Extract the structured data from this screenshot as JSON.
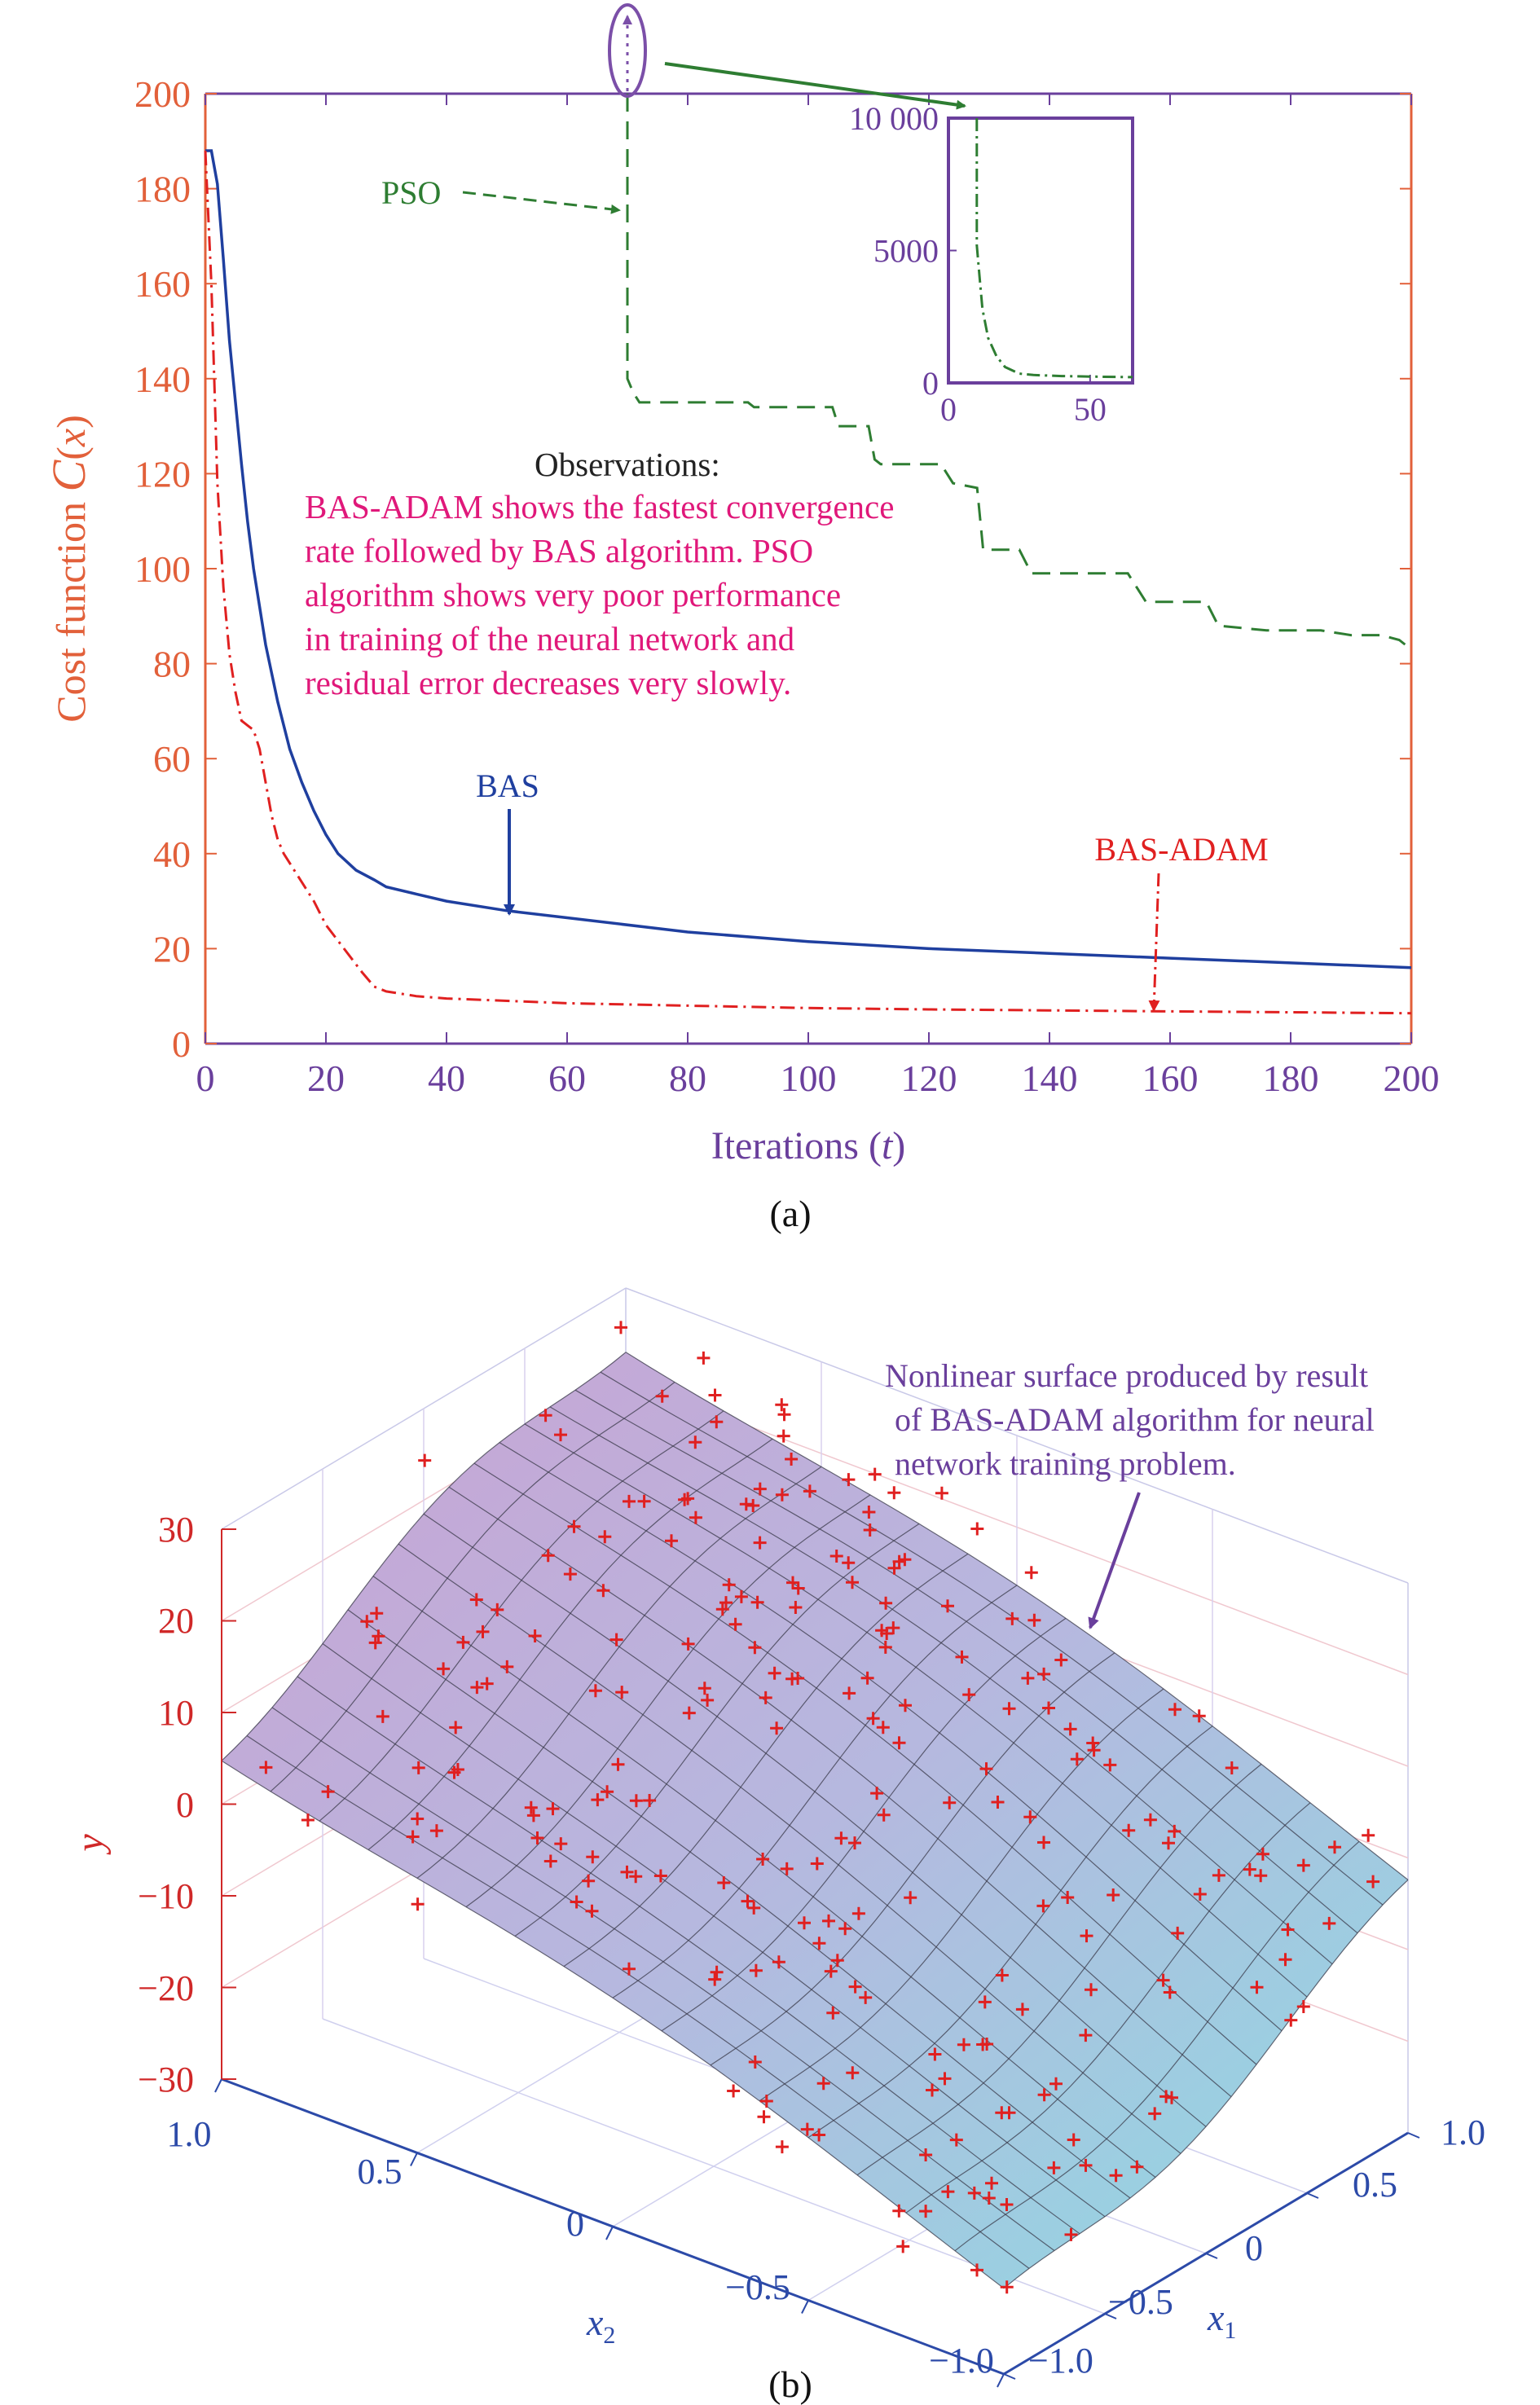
{
  "chart_data": [
    {
      "panel_label": "(a)",
      "type": "line",
      "xlabel": "Iterations (t)",
      "ylabel": "Cost function C(x)",
      "xlim": [
        0,
        200
      ],
      "ylim": [
        0,
        200
      ],
      "x_ticks": [
        0,
        20,
        40,
        60,
        80,
        100,
        120,
        140,
        160,
        180,
        200
      ],
      "y_ticks": [
        0,
        20,
        40,
        60,
        80,
        100,
        120,
        140,
        160,
        180,
        200
      ],
      "grid": false,
      "series": [
        {
          "name": "BAS",
          "color": "#1f3f9f",
          "style": "solid",
          "points": [
            [
              0,
              188
            ],
            [
              1,
              188
            ],
            [
              2,
              181
            ],
            [
              3,
              165
            ],
            [
              4,
              148
            ],
            [
              5,
              135
            ],
            [
              6,
              122
            ],
            [
              7,
              110
            ],
            [
              8,
              100
            ],
            [
              10,
              84
            ],
            [
              12,
              72
            ],
            [
              14,
              62
            ],
            [
              16,
              55
            ],
            [
              18,
              49
            ],
            [
              20,
              44
            ],
            [
              22,
              40
            ],
            [
              25,
              36.5
            ],
            [
              28,
              34.5
            ],
            [
              30,
              33
            ],
            [
              35,
              31.5
            ],
            [
              40,
              30
            ],
            [
              50,
              28
            ],
            [
              60,
              26.5
            ],
            [
              80,
              23.5
            ],
            [
              100,
              21.5
            ],
            [
              120,
              20
            ],
            [
              140,
              19
            ],
            [
              160,
              18
            ],
            [
              180,
              17
            ],
            [
              200,
              16
            ]
          ]
        },
        {
          "name": "BAS-ADAM",
          "color": "#e02020",
          "style": "dashdot",
          "points": [
            [
              0,
              188
            ],
            [
              1,
              160
            ],
            [
              2,
              118
            ],
            [
              3,
              96
            ],
            [
              4,
              82
            ],
            [
              5,
              74
            ],
            [
              6,
              68
            ],
            [
              7,
              67
            ],
            [
              8,
              66
            ],
            [
              9,
              62
            ],
            [
              10,
              55
            ],
            [
              11,
              48
            ],
            [
              12,
              43
            ],
            [
              13,
              40
            ],
            [
              15,
              36
            ],
            [
              18,
              30
            ],
            [
              20,
              25
            ],
            [
              23,
              20
            ],
            [
              26,
              15
            ],
            [
              28,
              12
            ],
            [
              30,
              11
            ],
            [
              35,
              10
            ],
            [
              40,
              9.5
            ],
            [
              60,
              8.5
            ],
            [
              80,
              8
            ],
            [
              100,
              7.5
            ],
            [
              120,
              7.2
            ],
            [
              140,
              7
            ],
            [
              160,
              6.8
            ],
            [
              180,
              6.6
            ],
            [
              200,
              6.4
            ]
          ]
        },
        {
          "name": "PSO",
          "color": "#2e7d32",
          "style": "dashed",
          "points": [
            [
              70,
              200
            ],
            [
              70,
              140
            ],
            [
              71,
              137
            ],
            [
              72,
              135
            ],
            [
              90,
              135
            ],
            [
              91,
              134
            ],
            [
              104,
              134
            ],
            [
              105,
              130
            ],
            [
              110,
              130
            ],
            [
              111,
              123
            ],
            [
              112,
              122
            ],
            [
              122,
              122
            ],
            [
              124,
              118
            ],
            [
              128,
              117
            ],
            [
              129,
              104
            ],
            [
              135,
              104
            ],
            [
              137,
              99
            ],
            [
              146,
              99
            ],
            [
              147,
              99
            ],
            [
              153,
              99
            ],
            [
              156,
              93
            ],
            [
              166,
              93
            ],
            [
              168,
              88
            ],
            [
              176,
              87
            ],
            [
              185,
              87
            ],
            [
              190,
              86
            ],
            [
              195,
              86
            ],
            [
              198,
              85
            ],
            [
              200,
              83
            ]
          ]
        }
      ],
      "inset": {
        "xlim": [
          0,
          65
        ],
        "ylim": [
          0,
          10000
        ],
        "x_ticks": [
          0,
          50
        ],
        "y_ticks": [
          "0",
          "5000",
          "10 000"
        ],
        "points": [
          [
            10,
            10000
          ],
          [
            10,
            5200
          ],
          [
            11,
            4000
          ],
          [
            12,
            2800
          ],
          [
            14,
            1700
          ],
          [
            17,
            1000
          ],
          [
            20,
            600
          ],
          [
            25,
            350
          ],
          [
            30,
            300
          ],
          [
            40,
            260
          ],
          [
            55,
            230
          ],
          [
            65,
            220
          ]
        ]
      },
      "annotations": {
        "pso_label": "PSO",
        "bas_label": "BAS",
        "bas_adam_label": "BAS-ADAM",
        "observations_title": "Observations:",
        "observations_lines": [
          "BAS-ADAM shows the fastest convergence",
          "rate followed by BAS algorithm. PSO",
          "algorithm shows very poor performance",
          "in training of the neural network and",
          "residual error decreases very slowly."
        ]
      },
      "colors": {
        "y_axis": "#e2603a",
        "x_axis": "#6a3f9c",
        "observations_text": "#e0187a",
        "pso_arrow": "#2e7d32",
        "bas_arrow": "#1f3f9f",
        "bas_adam_arrow": "#e02020",
        "ellipse": "#7b4fa8"
      }
    },
    {
      "panel_label": "(b)",
      "type": "surface3d",
      "ylabel": "y",
      "x1_label": "x1",
      "x2_label": "x2",
      "y_ticks": [
        "30",
        "20",
        "10",
        "0",
        "−10",
        "−20",
        "−30"
      ],
      "x1_ticks": [
        "1.0",
        "0.5",
        "0",
        "−0.5",
        "−1.0"
      ],
      "x2_ticks": [
        "1.0",
        "0.5",
        "0",
        "−0.5",
        "−1.0"
      ],
      "annotation_lines": [
        "Nonlinear surface produced by result",
        "of BAS-ADAM algorithm for neural",
        "network training problem."
      ],
      "surface_grid": [
        17,
        17
      ],
      "scatter_marker": "+",
      "scatter_count": 240,
      "colors": {
        "y_axis": "#d02828",
        "x_axes": "#2c4aa8",
        "surface_high": "#c9a3d4",
        "surface_low": "#8fd8e0",
        "scatter": "#e02020",
        "annotation_text": "#6a3f9c",
        "annotation_arrow": "#6a3f9c"
      }
    }
  ]
}
